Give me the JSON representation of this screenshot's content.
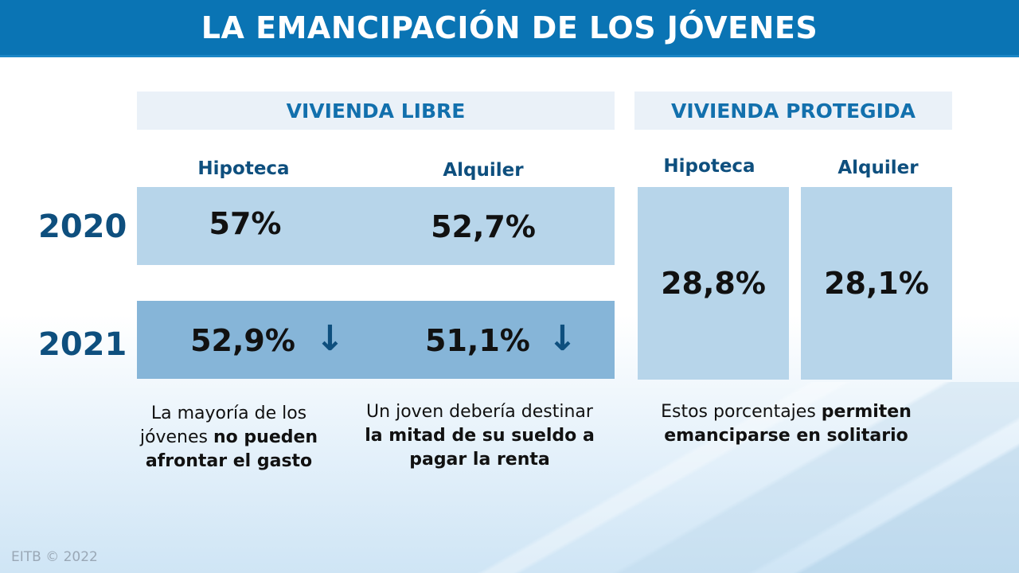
{
  "title": "LA EMANCIPACIÓN DE LOS JÓVENES",
  "sections": {
    "libre": {
      "label": "VIVIENDA LIBRE",
      "columns": [
        "Hipoteca",
        "Alquiler"
      ]
    },
    "protegida": {
      "label": "VIVIENDA PROTEGIDA",
      "columns": [
        "Hipoteca",
        "Alquiler"
      ]
    }
  },
  "years": [
    "2020",
    "2021"
  ],
  "libre_values": {
    "2020": {
      "hipoteca": "57%",
      "alquiler": "52,7%"
    },
    "2021": {
      "hipoteca": "52,9%",
      "alquiler": "51,1%",
      "trend": "down",
      "trend_icon": "arrow-down-icon"
    }
  },
  "protegida_values": {
    "hipoteca": "28,8%",
    "alquiler": "28,1%"
  },
  "notes": [
    {
      "parts": [
        "La mayoría de los jóvenes ",
        "no pueden afrontar el gasto"
      ]
    },
    {
      "parts": [
        "Un joven debería destinar ",
        "la mitad de su sueldo a pagar la renta"
      ]
    },
    {
      "parts": [
        "Estos porcentajes ",
        "permiten emanciparse en solitario"
      ]
    }
  ],
  "footer": "EITB © 2022",
  "colors": {
    "header": "#0a74b4",
    "accent_text": "#0e4f7e",
    "cell_2020": "#b7d5ea",
    "cell_2021": "#86b5d8",
    "section_bg": "#eaf1f8"
  }
}
